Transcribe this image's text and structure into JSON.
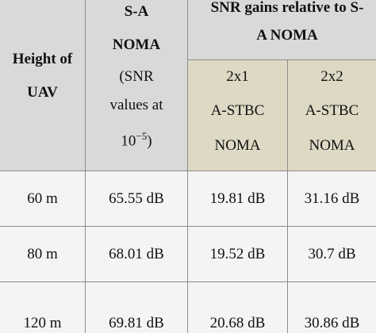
{
  "table": {
    "header": {
      "col1": [
        "Height of",
        "UAV"
      ],
      "col2_title": [
        "S-A",
        "NOMA"
      ],
      "col2_note": [
        "(SNR",
        "values at"
      ],
      "col2_power": {
        "base": "10",
        "exp": "−5",
        "close": ")"
      },
      "group": [
        "SNR gains relative to S-",
        "A NOMA"
      ],
      "sub1": [
        "2x1",
        "A-STBC",
        "NOMA"
      ],
      "sub2": [
        "2x2",
        "A-STBC",
        "NOMA"
      ]
    },
    "rows": [
      [
        "60 m",
        "65.55 dB",
        "19.81 dB",
        "31.16 dB"
      ],
      [
        "80 m",
        "68.01 dB",
        "19.52 dB",
        "30.7 dB"
      ],
      [
        "120 m",
        "69.81 dB",
        "20.68 dB",
        "30.86 dB"
      ]
    ]
  }
}
